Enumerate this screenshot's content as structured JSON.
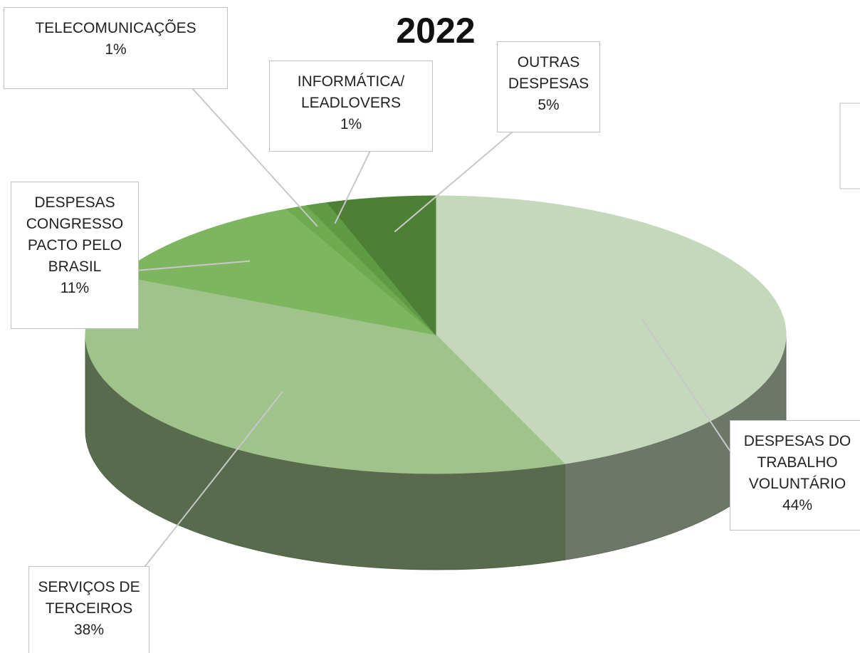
{
  "chart_data": {
    "type": "pie",
    "title": "2022",
    "categories": [
      "DESPESAS DO TRABALHO VOLUNTÁRIO",
      "SERVIÇOS DE TERCEIROS",
      "DESPESAS CONGRESSO PACTO PELO BRASIL",
      "TELECOMUNICAÇÕES",
      "INFORMÁTICA/ LEADLOVERS",
      "OUTRAS DESPESAS"
    ],
    "values": [
      44,
      38,
      11,
      1,
      1,
      5
    ],
    "value_labels": [
      "44%",
      "38%",
      "11%",
      "1%",
      "1%",
      "5%"
    ],
    "colors": [
      "#c4d8bc",
      "#a0c38c",
      "#7eb561",
      "#6eaa50",
      "#5f9a44",
      "#4d7f35"
    ]
  }
}
